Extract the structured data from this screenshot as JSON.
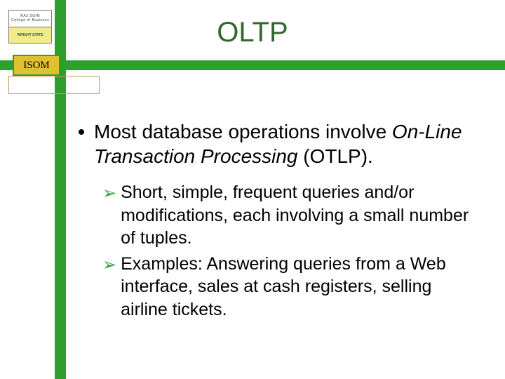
{
  "colors": {
    "accent_green": "#2e9e2e",
    "title_green": "#336633",
    "badge_gold": "#e0c030",
    "background": "#ffffff",
    "text": "#000000",
    "logo_border": "#7a7a7a",
    "underline_border": "#c0a060",
    "logo_bottom_bg": "#f2e98a"
  },
  "logo": {
    "line1": "RAJ SOIN",
    "line2": "College of Business",
    "bottom": "WRIGHT STATE"
  },
  "badge": {
    "label": "ISOM"
  },
  "title": "OLTP",
  "typography": {
    "title_fontsize": 40,
    "bullet_fontsize": 28,
    "sub_fontsize": 25,
    "badge_fontsize": 15
  },
  "bullets": [
    {
      "prefix": "Most database operations involve ",
      "italic": "On-Line Transaction Processing",
      "suffix": "  (OTLP).",
      "subs": [
        "Short, simple, frequent queries and/or modifications, each involving a small number of tuples.",
        "Examples: Answering queries from a Web interface, sales at cash registers, selling airline tickets."
      ]
    }
  ]
}
